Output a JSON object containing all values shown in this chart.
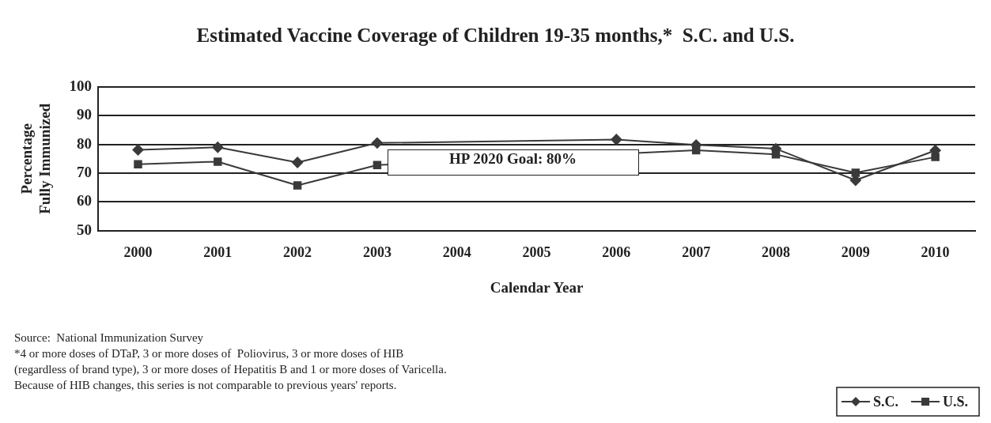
{
  "chart_data": {
    "type": "line",
    "title": "Estimated Vaccine Coverage of Children 19-35 months,*  S.C. and U.S.",
    "xlabel": "Calendar Year",
    "ylabel": "Percentage\nFully Immunized",
    "categories": [
      "2000",
      "2001",
      "2002",
      "2003",
      "2004",
      "2005",
      "2006",
      "2007",
      "2008",
      "2009",
      "2010"
    ],
    "series": [
      {
        "name": "S.C.",
        "color": "#3a3a3a",
        "marker": "diamond",
        "values": [
          78.1,
          79.0,
          73.7,
          80.5,
          null,
          null,
          81.7,
          79.8,
          78.5,
          67.5,
          77.9
        ]
      },
      {
        "name": "U.S.",
        "color": "#3a3a3a",
        "marker": "square",
        "values": [
          73.1,
          74.0,
          65.7,
          72.8,
          null,
          null,
          null,
          78.0,
          76.5,
          70.1,
          75.6
        ]
      }
    ],
    "ylim": [
      50,
      100
    ],
    "yticks": [
      50,
      60,
      70,
      80,
      90,
      100
    ],
    "grid": "y",
    "legend": "bottom right",
    "line_style": "solid",
    "annotations": [
      {
        "text": "HP 2020 Goal: 80%",
        "y": 80
      },
      "Source:  National Immunization Survey",
      "*4 or more doses of DTaP, 3 or more doses of  Poliovirus, 3 or more doses of HIB (regardless of brand type), 3 or more doses of Hepatitis B and 1 or more doses of Varicella. Because of HIB changes, this series is not comparable to previous years' reports."
    ]
  }
}
